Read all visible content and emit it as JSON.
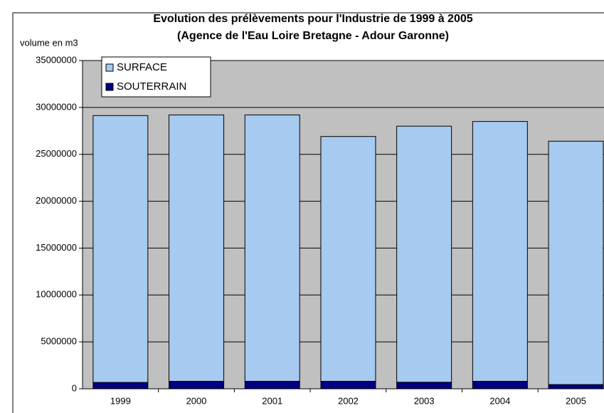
{
  "chart_data": {
    "type": "stacked_bar",
    "title": "Evolution des prélèvements pour l'Industrie de 1999 à 2005",
    "subtitle": "(Agence de l'Eau Loire Bretagne - Adour Garonne)",
    "y_label": "volume en m3",
    "categories": [
      "1999",
      "2000",
      "2001",
      "2002",
      "2003",
      "2004",
      "2005"
    ],
    "series": [
      {
        "name": "SURFACE",
        "color": "#a6caf0",
        "values": [
          28450000,
          28400000,
          28400000,
          26100000,
          27300000,
          27700000,
          25950000
        ]
      },
      {
        "name": "SOUTERRAIN",
        "color": "#000080",
        "values": [
          680000,
          800000,
          800000,
          800000,
          700000,
          800000,
          450000
        ]
      }
    ],
    "ylim": [
      0,
      35000000
    ],
    "yticks": [
      0,
      5000000,
      10000000,
      15000000,
      20000000,
      25000000,
      30000000,
      35000000
    ],
    "grid": true,
    "legend": "top-left"
  }
}
